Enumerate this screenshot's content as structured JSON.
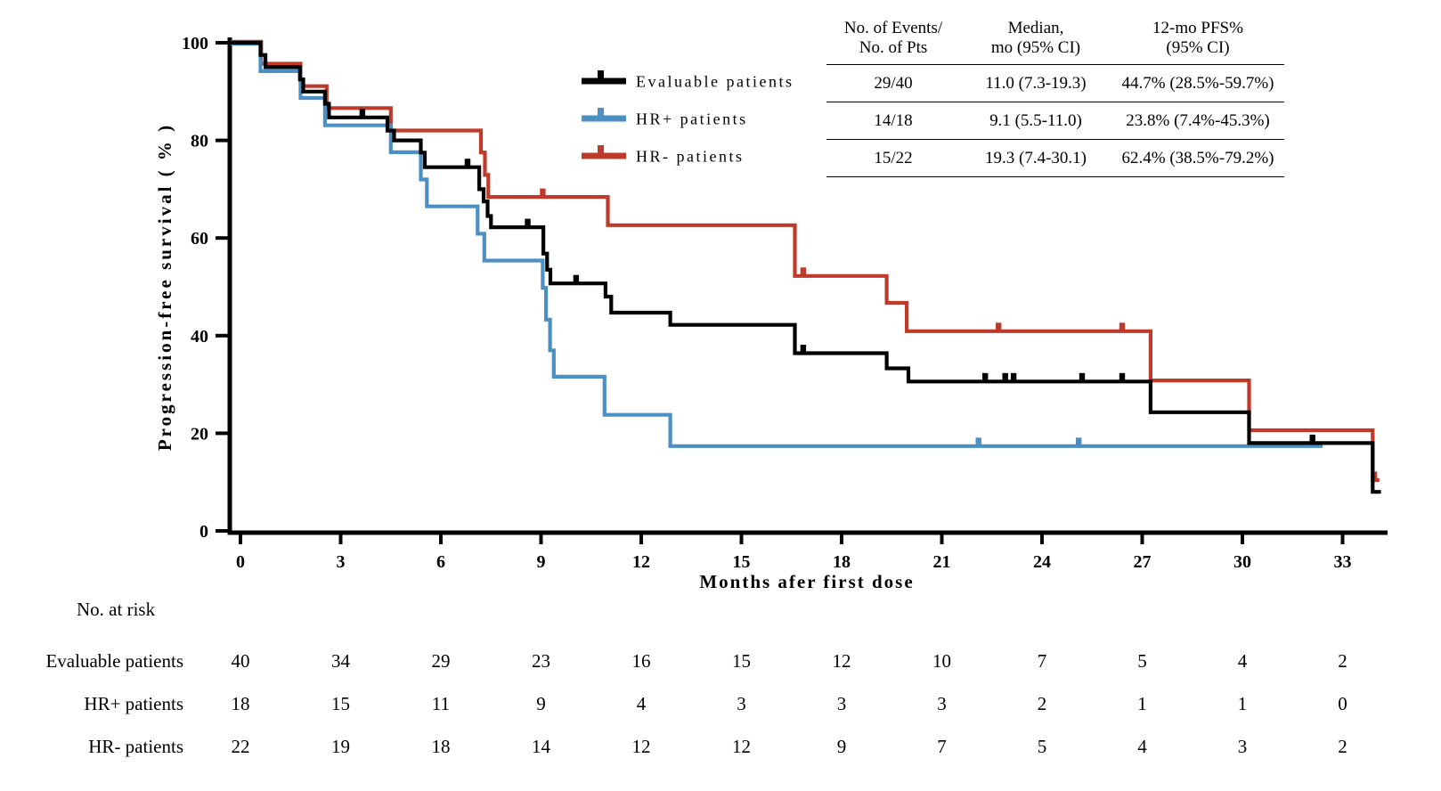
{
  "figure": {
    "y_axis": {
      "title": "Progression-free survival ( % )",
      "tick_labels": [
        "0",
        "20",
        "40",
        "60",
        "80",
        "100"
      ]
    },
    "x_axis": {
      "title": "Months afer first dose",
      "tick_labels": [
        "0",
        "3",
        "6",
        "9",
        "12",
        "15",
        "18",
        "21",
        "24",
        "27",
        "30",
        "33"
      ]
    }
  },
  "legend": [
    {
      "key": "evaluable",
      "label": "Evaluable patients",
      "color": "#000000"
    },
    {
      "key": "hr-plus",
      "label": "HR+ patients",
      "color": "#4B8FC3"
    },
    {
      "key": "hr-minus",
      "label": "HR- patients",
      "color": "#BE3B2C"
    }
  ],
  "stats_table": {
    "headers": [
      [
        "No. of Events/",
        "No. of Pts"
      ],
      [
        "Median,",
        "mo (95% CI)"
      ],
      [
        "12-mo PFS%",
        "(95% CI)"
      ]
    ],
    "rows": [
      [
        "29/40",
        "11.0 (7.3-19.3)",
        "44.7% (28.5%-59.7%)"
      ],
      [
        "14/18",
        "9.1 (5.5-11.0)",
        "23.8% (7.4%-45.3%)"
      ],
      [
        "15/22",
        "19.3 (7.4-30.1)",
        "62.4% (38.5%-79.2%)"
      ]
    ]
  },
  "no_at_risk": {
    "title": "No. at risk",
    "months": [
      0,
      3,
      6,
      9,
      12,
      15,
      18,
      21,
      24,
      27,
      30,
      33
    ],
    "rows": [
      {
        "label": "Evaluable patients",
        "counts": [
          "40",
          "34",
          "29",
          "23",
          "16",
          "15",
          "12",
          "10",
          "7",
          "5",
          "4",
          "2"
        ]
      },
      {
        "label": "HR+ patients",
        "counts": [
          "18",
          "15",
          "11",
          "9",
          "4",
          "3",
          "3",
          "3",
          "2",
          "1",
          "1",
          "0"
        ]
      },
      {
        "label": "HR- patients",
        "counts": [
          "22",
          "19",
          "18",
          "14",
          "12",
          "12",
          "9",
          "7",
          "5",
          "4",
          "3",
          "2"
        ]
      }
    ]
  },
  "chart_data": {
    "type": "line",
    "subtype": "kaplan-meier-step",
    "xlabel": "Months afer first dose",
    "ylabel": "Progression-free survival ( % )",
    "xlim": [
      0,
      34.6
    ],
    "ylim": [
      0,
      100
    ],
    "x_ticks": [
      0,
      3,
      6,
      9,
      12,
      15,
      18,
      21,
      24,
      27,
      30,
      33
    ],
    "y_ticks": [
      0,
      20,
      40,
      60,
      80,
      100
    ],
    "grid": false,
    "legend_position": "upper-right",
    "series": [
      {
        "key": "evaluable",
        "name": "Evaluable patients",
        "color": "#000000",
        "events_patients": "29/40",
        "median_mo_95ci": "11.0 (7.3-19.3)",
        "pfs12_95ci": "44.7% (28.5%-59.7%)",
        "start": [
          0,
          100
        ],
        "steps": [
          [
            0.6,
            97.5
          ],
          [
            0.75,
            95
          ],
          [
            1.78,
            92.5
          ],
          [
            1.88,
            90
          ],
          [
            2.53,
            87.5
          ],
          [
            2.65,
            84.7
          ],
          [
            4.4,
            82
          ],
          [
            4.6,
            80
          ],
          [
            5.4,
            77.5
          ],
          [
            5.52,
            74.5
          ],
          [
            7.15,
            70
          ],
          [
            7.28,
            67.5
          ],
          [
            7.4,
            64.5
          ],
          [
            7.5,
            62.2
          ],
          [
            9.07,
            56.8
          ],
          [
            9.18,
            53.5
          ],
          [
            9.28,
            50.7
          ],
          [
            10.93,
            48
          ],
          [
            11.1,
            44.7
          ],
          [
            12.87,
            42.2
          ],
          [
            16.6,
            36.4
          ],
          [
            19.35,
            33.3
          ],
          [
            20,
            30.6
          ],
          [
            27.25,
            24.3
          ],
          [
            30.2,
            18
          ],
          [
            33.9,
            8
          ]
        ],
        "censors": [
          [
            3.65,
            84.7
          ],
          [
            6.8,
            74.5
          ],
          [
            8.6,
            62.2
          ],
          [
            10.05,
            50.7
          ],
          [
            16.85,
            36.4
          ],
          [
            22.3,
            30.6
          ],
          [
            22.9,
            30.6
          ],
          [
            23.15,
            30.6
          ],
          [
            25.2,
            30.6
          ],
          [
            26.4,
            30.6
          ],
          [
            32.1,
            18
          ]
        ],
        "end_month": 34.15
      },
      {
        "key": "hr-plus",
        "name": "HR+ patients",
        "color": "#4B8FC3",
        "events_patients": "14/18",
        "median_mo_95ci": "9.1 (5.5-11.0)",
        "pfs12_95ci": "23.8% (7.4%-45.3%)",
        "start": [
          0,
          100
        ],
        "steps": [
          [
            0.6,
            94.4
          ],
          [
            1.8,
            88.9
          ],
          [
            2.53,
            83.3
          ],
          [
            4.5,
            77.8
          ],
          [
            5.4,
            72.2
          ],
          [
            5.58,
            66.7
          ],
          [
            7.1,
            61.1
          ],
          [
            7.3,
            55.6
          ],
          [
            9.05,
            50
          ],
          [
            9.15,
            43.5
          ],
          [
            9.27,
            37.2
          ],
          [
            9.38,
            31.8
          ],
          [
            10.9,
            24
          ],
          [
            12.87,
            17.6
          ]
        ],
        "censors": [
          [
            22.1,
            17.6
          ],
          [
            25.1,
            17.6
          ]
        ],
        "end_month": 32.4
      },
      {
        "key": "hr-minus",
        "name": "HR- patients",
        "color": "#BE3B2C",
        "events_patients": "15/22",
        "median_mo_95ci": "19.3 (7.4-30.1)",
        "pfs12_95ci": "62.4% (38.5%-79.2%)",
        "start": [
          0,
          100
        ],
        "steps": [
          [
            0.62,
            95.5
          ],
          [
            1.8,
            90.9
          ],
          [
            2.58,
            86.4
          ],
          [
            4.5,
            81.8
          ],
          [
            7.2,
            77.3
          ],
          [
            7.32,
            72.7
          ],
          [
            7.42,
            68.2
          ],
          [
            11,
            62.4
          ],
          [
            16.6,
            52
          ],
          [
            19.35,
            46.5
          ],
          [
            19.95,
            40.7
          ],
          [
            27.25,
            30.6
          ],
          [
            30.2,
            20.4
          ],
          [
            33.9,
            10.2
          ]
        ],
        "censors": [
          [
            9.05,
            68.2
          ],
          [
            16.85,
            52
          ],
          [
            22.7,
            40.7
          ],
          [
            26.4,
            40.7
          ],
          [
            33.95,
            10.2
          ]
        ],
        "end_month": 34.1
      }
    ]
  }
}
